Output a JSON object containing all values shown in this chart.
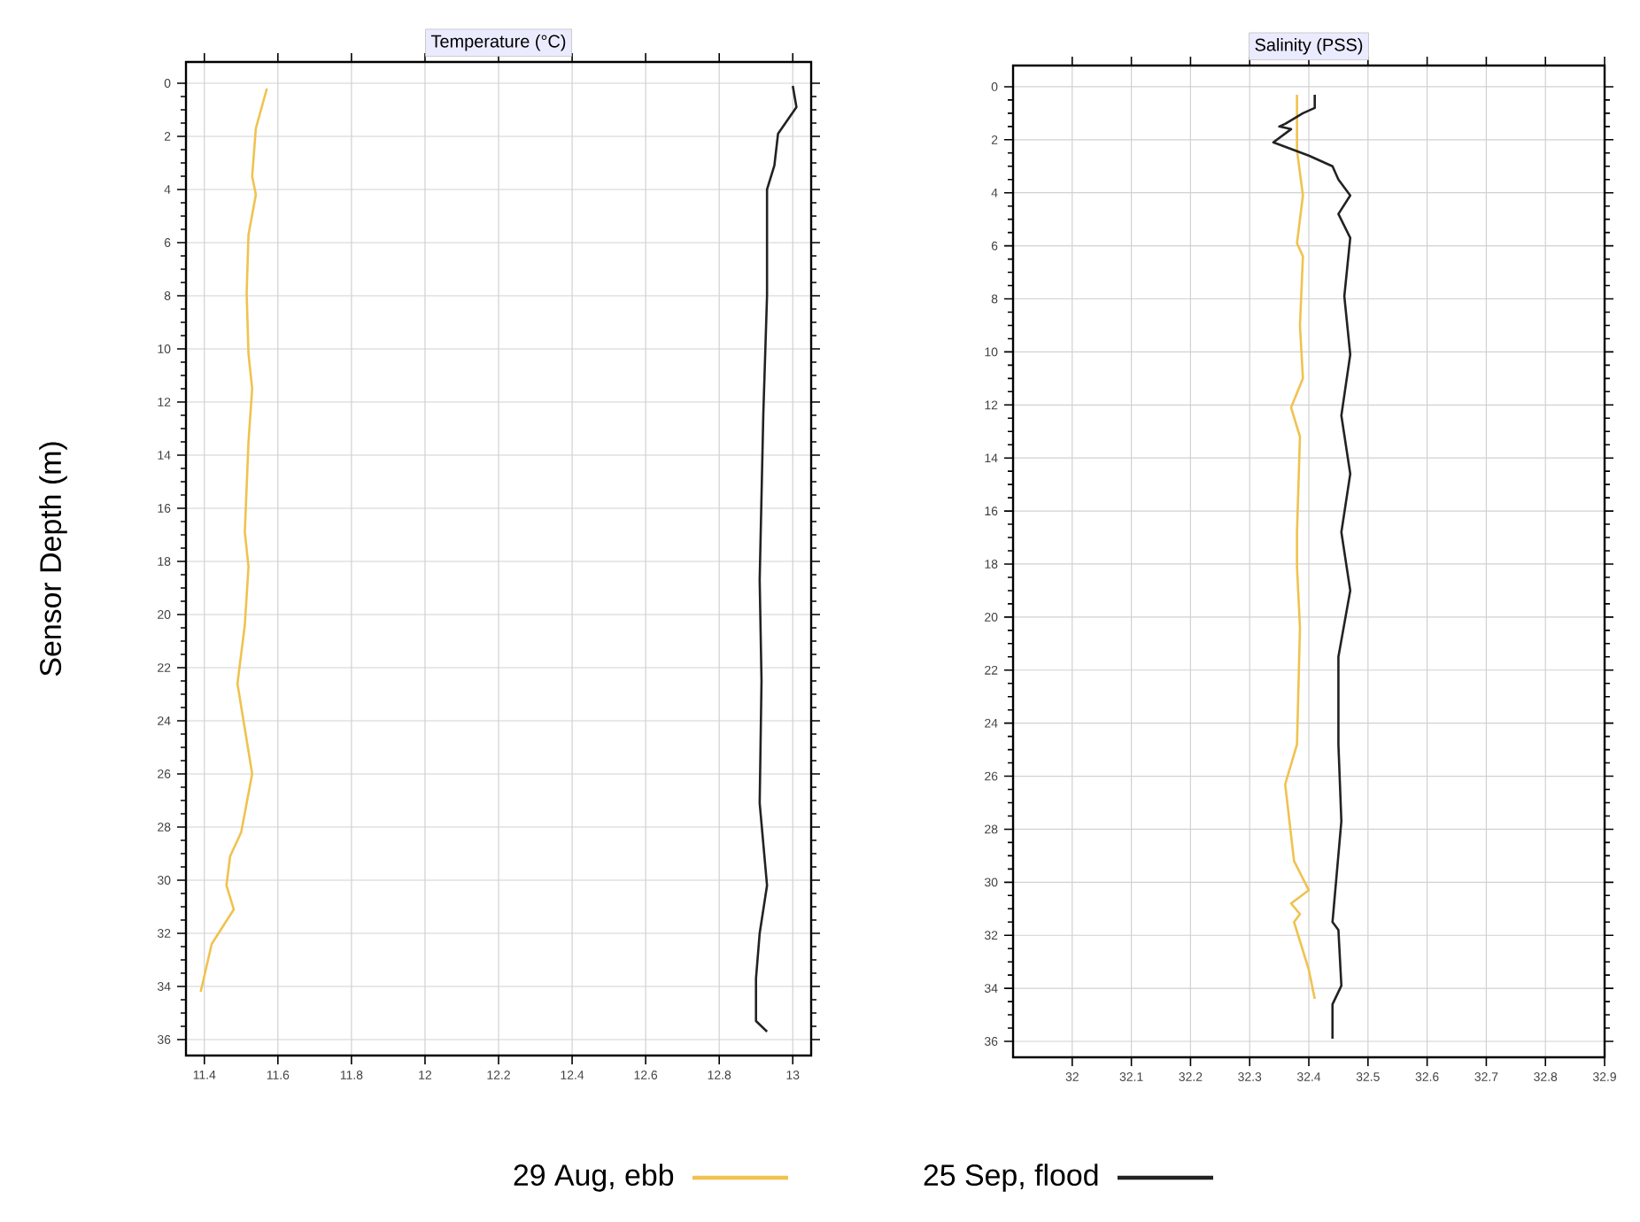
{
  "chart_data": [
    {
      "type": "line",
      "xlabel": "Temperature (°C)",
      "ylabel": "Sensor Depth (m)",
      "xlim": [
        11.35,
        13.05
      ],
      "ylim": [
        36.6,
        -0.8
      ],
      "xticks": [
        11.4,
        11.6,
        11.8,
        12,
        12.2,
        12.4,
        12.6,
        12.8,
        13
      ],
      "yticks": [
        0,
        2,
        4,
        6,
        8,
        10,
        12,
        14,
        16,
        18,
        20,
        22,
        24,
        26,
        28,
        30,
        32,
        34,
        36
      ],
      "grid": true,
      "legend": "bottom",
      "series": [
        {
          "name": "29 Aug, ebb",
          "color": "#f0c24f",
          "x": [
            11.57,
            11.54,
            11.53,
            11.54,
            11.52,
            11.515,
            11.52,
            11.53,
            11.52,
            11.51,
            11.52,
            11.51,
            11.49,
            11.53,
            11.5,
            11.47,
            11.46,
            11.48,
            11.42,
            11.39
          ],
          "values": [
            0.2,
            1.7,
            3.5,
            4.2,
            5.7,
            7.9,
            10.2,
            11.5,
            13.5,
            16.9,
            18.2,
            20.4,
            22.6,
            26,
            28.2,
            29.1,
            30.2,
            31.1,
            32.4,
            34.2
          ]
        },
        {
          "name": "25 Sep, flood",
          "color": "#222222",
          "x": [
            13.0,
            13.01,
            12.99,
            12.96,
            12.95,
            12.93,
            12.93,
            12.92,
            12.91,
            12.915,
            12.91,
            12.93,
            12.91,
            12.9,
            12.9,
            12.93
          ],
          "values": [
            0.1,
            0.9,
            1.3,
            1.9,
            3.1,
            4,
            8,
            12.4,
            18.7,
            22.5,
            27.1,
            30.2,
            32,
            33.7,
            35.3,
            35.7
          ]
        }
      ]
    },
    {
      "type": "line",
      "xlabel": "Salinity (PSS)",
      "xlim": [
        31.9,
        32.9
      ],
      "ylim": [
        36.6,
        -0.8
      ],
      "xticks": [
        32,
        32.1,
        32.2,
        32.3,
        32.4,
        32.5,
        32.6,
        32.7,
        32.8,
        32.9
      ],
      "yticks": [
        0,
        2,
        4,
        6,
        8,
        10,
        12,
        14,
        16,
        18,
        20,
        22,
        24,
        26,
        28,
        30,
        32,
        34,
        36
      ],
      "grid": true,
      "series": [
        {
          "color": "#f0c24f",
          "x": [
            32.38,
            32.38,
            32.39,
            32.38,
            32.39,
            32.385,
            32.39,
            32.37,
            32.385,
            32.38,
            32.38,
            32.385,
            32.38,
            32.36,
            32.375,
            32.4,
            32.37,
            32.385,
            32.375,
            32.4,
            32.41
          ],
          "values": [
            0.3,
            2.4,
            4.1,
            5.9,
            6.4,
            9,
            11,
            12.1,
            13.2,
            16.8,
            18.1,
            20.4,
            24.8,
            26.3,
            29.2,
            30.3,
            30.8,
            31.2,
            31.5,
            33.3,
            34.4
          ]
        },
        {
          "color": "#222222",
          "x": [
            32.41,
            32.41,
            32.39,
            32.36,
            32.35,
            32.37,
            32.34,
            32.4,
            32.44,
            32.45,
            32.47,
            32.45,
            32.47,
            32.46,
            32.47,
            32.455,
            32.47,
            32.455,
            32.47,
            32.45,
            32.45,
            32.455,
            32.44,
            32.45,
            32.455,
            32.44,
            32.44
          ],
          "values": [
            0.3,
            0.8,
            1.0,
            1.4,
            1.5,
            1.6,
            2.1,
            2.6,
            3.0,
            3.5,
            4.1,
            4.8,
            5.7,
            7.9,
            10.1,
            12.4,
            14.6,
            16.8,
            19,
            21.5,
            24.8,
            27.7,
            31.5,
            31.8,
            33.9,
            34.6,
            35.9
          ]
        }
      ]
    }
  ]
}
